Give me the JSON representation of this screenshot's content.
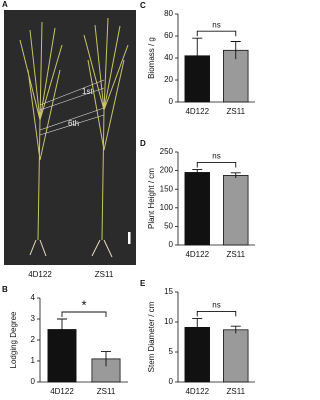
{
  "panel_a": {
    "label": "A",
    "annotations": [
      "1st",
      "6th"
    ],
    "varieties": [
      "4D122",
      "ZS11"
    ]
  },
  "chart_data": [
    {
      "type": "bar",
      "panel_label": "B",
      "y_label": "Lodging Degree",
      "categories": [
        "4D122",
        "ZS11"
      ],
      "values": [
        2.5,
        1.1
      ],
      "errors": [
        0.5,
        0.35
      ],
      "colors": [
        "#111111",
        "#9a9a9a"
      ],
      "ylim": [
        0,
        4
      ],
      "yticks": [
        0,
        1,
        2,
        3,
        4
      ],
      "significance": "*"
    },
    {
      "type": "bar",
      "panel_label": "C",
      "y_label": "Biomass / g",
      "categories": [
        "4D122",
        "ZS11"
      ],
      "values": [
        42,
        47
      ],
      "errors": [
        16,
        8
      ],
      "colors": [
        "#111111",
        "#9a9a9a"
      ],
      "ylim": [
        0,
        80
      ],
      "yticks": [
        0,
        20,
        40,
        60,
        80
      ],
      "significance": "ns"
    },
    {
      "type": "bar",
      "panel_label": "D",
      "y_label": "Plant Height / cm",
      "categories": [
        "4D122",
        "ZS11"
      ],
      "values": [
        195,
        187
      ],
      "errors": [
        8,
        7
      ],
      "colors": [
        "#111111",
        "#9a9a9a"
      ],
      "ylim": [
        0,
        250
      ],
      "yticks": [
        0,
        50,
        100,
        150,
        200,
        250
      ],
      "significance": "ns"
    },
    {
      "type": "bar",
      "panel_label": "E",
      "y_label": "Stem Diameter / cm",
      "categories": [
        "4D122",
        "ZS11"
      ],
      "values": [
        9.1,
        8.7
      ],
      "errors": [
        1.5,
        0.6
      ],
      "colors": [
        "#111111",
        "#9a9a9a"
      ],
      "ylim": [
        0,
        15
      ],
      "yticks": [
        0,
        5,
        10,
        15
      ],
      "significance": "ns"
    }
  ]
}
